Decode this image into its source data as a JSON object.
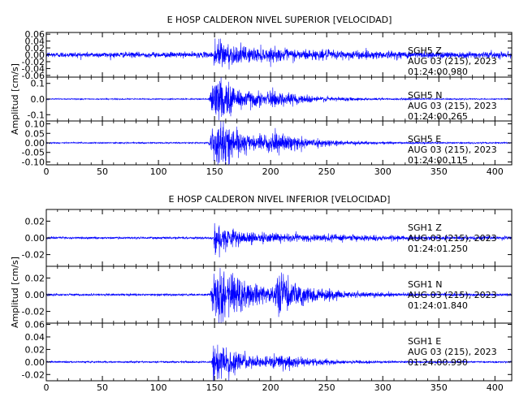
{
  "chart_data": [
    {
      "type": "line",
      "title": "E HOSP CALDERON NIVEL SUPERIOR [VELOCIDAD]",
      "ylabel": "Amplitud [cm/s]",
      "xlim": [
        0,
        415
      ],
      "xticks": [
        0,
        50,
        100,
        150,
        200,
        250,
        300,
        350,
        400
      ],
      "xtick_labels": [
        "0",
        "50",
        "100",
        "150",
        "200",
        "250",
        "300",
        "350",
        "400"
      ],
      "line_color": "#0000ff",
      "grid": false,
      "panels": [
        {
          "channel": "SGH5  Z",
          "date": "AUG 03 (215), 2023",
          "time": "01:24:00.980",
          "ylim": [
            -0.065,
            0.065
          ],
          "yticks": [
            -0.06,
            -0.04,
            -0.02,
            0.0,
            0.02,
            0.04,
            0.06
          ],
          "ytick_labels": [
            "-0.06",
            "-0.04",
            "-0.02",
            "0.00",
            "0.02",
            "0.04",
            "0.06"
          ],
          "noise_amplitude": 0.009,
          "events": [
            {
              "time": 149.5,
              "peak": 0.06,
              "decay": 7,
              "spread": 0
            },
            {
              "time": 152,
              "peak": 0.022,
              "decay": 90,
              "spread": 0
            }
          ]
        },
        {
          "channel": "SGH5  N",
          "date": "AUG 03 (215), 2023",
          "time": "01:24:00.265",
          "ylim": [
            -0.14,
            0.14
          ],
          "yticks": [
            -0.1,
            0.0,
            0.1
          ],
          "ytick_labels": [
            "-0.1",
            "0.0",
            "0.1"
          ],
          "noise_amplitude": 0.004,
          "events": [
            {
              "time": 150,
              "peak": 0.07,
              "decay": 18,
              "spread": 6
            },
            {
              "time": 158,
              "peak": 0.09,
              "decay": 40,
              "spread": 15
            },
            {
              "time": 205,
              "peak": 0.025,
              "decay": 30,
              "spread": 8
            }
          ]
        },
        {
          "channel": "SGH5  E",
          "date": "AUG 03 (215), 2023",
          "time": "01:24:00.115",
          "ylim": [
            -0.115,
            0.115
          ],
          "yticks": [
            -0.1,
            -0.05,
            0.0,
            0.05,
            0.1
          ],
          "ytick_labels": [
            "-0.10",
            "-0.05",
            "0.00",
            "0.05",
            "0.10"
          ],
          "noise_amplitude": 0.004,
          "events": [
            {
              "time": 150,
              "peak": 0.06,
              "decay": 15,
              "spread": 6
            },
            {
              "time": 158,
              "peak": 0.08,
              "decay": 40,
              "spread": 15
            },
            {
              "time": 205,
              "peak": 0.03,
              "decay": 30,
              "spread": 8
            }
          ]
        }
      ]
    },
    {
      "type": "line",
      "title": "E HOSP CALDERON NIVEL INFERIOR [VELOCIDAD]",
      "ylabel": "Amplitud [cm/s]",
      "xlim": [
        0,
        415
      ],
      "xticks": [
        0,
        50,
        100,
        150,
        200,
        250,
        300,
        350,
        400
      ],
      "xtick_labels": [
        "0",
        "50",
        "100",
        "150",
        "200",
        "250",
        "300",
        "350",
        "400"
      ],
      "line_color": "#0000ff",
      "grid": false,
      "panels": [
        {
          "channel": "SGH1  Z",
          "date": "AUG 03 (215), 2023",
          "time": "01:24:01.250",
          "ylim": [
            -0.034,
            0.034
          ],
          "yticks": [
            -0.02,
            0.0,
            0.02
          ],
          "ytick_labels": [
            "-0.02",
            "0.00",
            "0.02"
          ],
          "noise_amplitude": 0.0015,
          "events": [
            {
              "time": 149.5,
              "peak": 0.032,
              "decay": 6,
              "spread": 0
            },
            {
              "time": 151,
              "peak": 0.008,
              "decay": 110,
              "spread": 0
            }
          ]
        },
        {
          "channel": "SGH1  N",
          "date": "AUG 03 (215), 2023",
          "time": "01:24:01.840",
          "ylim": [
            -0.034,
            0.034
          ],
          "yticks": [
            -0.02,
            0.0,
            0.02
          ],
          "ytick_labels": [
            "-0.02",
            "0.00",
            "0.02"
          ],
          "noise_amplitude": 0.0015,
          "events": [
            {
              "time": 150,
              "peak": 0.02,
              "decay": 15,
              "spread": 5
            },
            {
              "time": 158,
              "peak": 0.028,
              "decay": 35,
              "spread": 12
            },
            {
              "time": 210,
              "peak": 0.018,
              "decay": 30,
              "spread": 10
            }
          ]
        },
        {
          "channel": "SGH1  E",
          "date": "AUG 03 (215), 2023",
          "time": "01:24:00.990",
          "ylim": [
            -0.03,
            0.062
          ],
          "yticks": [
            -0.02,
            0.0,
            0.02,
            0.04,
            0.06
          ],
          "ytick_labels": [
            "-0.02",
            "0.00",
            "0.02",
            "0.04",
            "0.06"
          ],
          "noise_amplitude": 0.0015,
          "events": [
            {
              "time": 149.5,
              "peak": 0.026,
              "decay": 8,
              "spread": 3
            },
            {
              "time": 158,
              "peak": 0.018,
              "decay": 40,
              "spread": 12
            },
            {
              "time": 205,
              "peak": 0.008,
              "decay": 30,
              "spread": 8
            }
          ]
        }
      ]
    }
  ]
}
